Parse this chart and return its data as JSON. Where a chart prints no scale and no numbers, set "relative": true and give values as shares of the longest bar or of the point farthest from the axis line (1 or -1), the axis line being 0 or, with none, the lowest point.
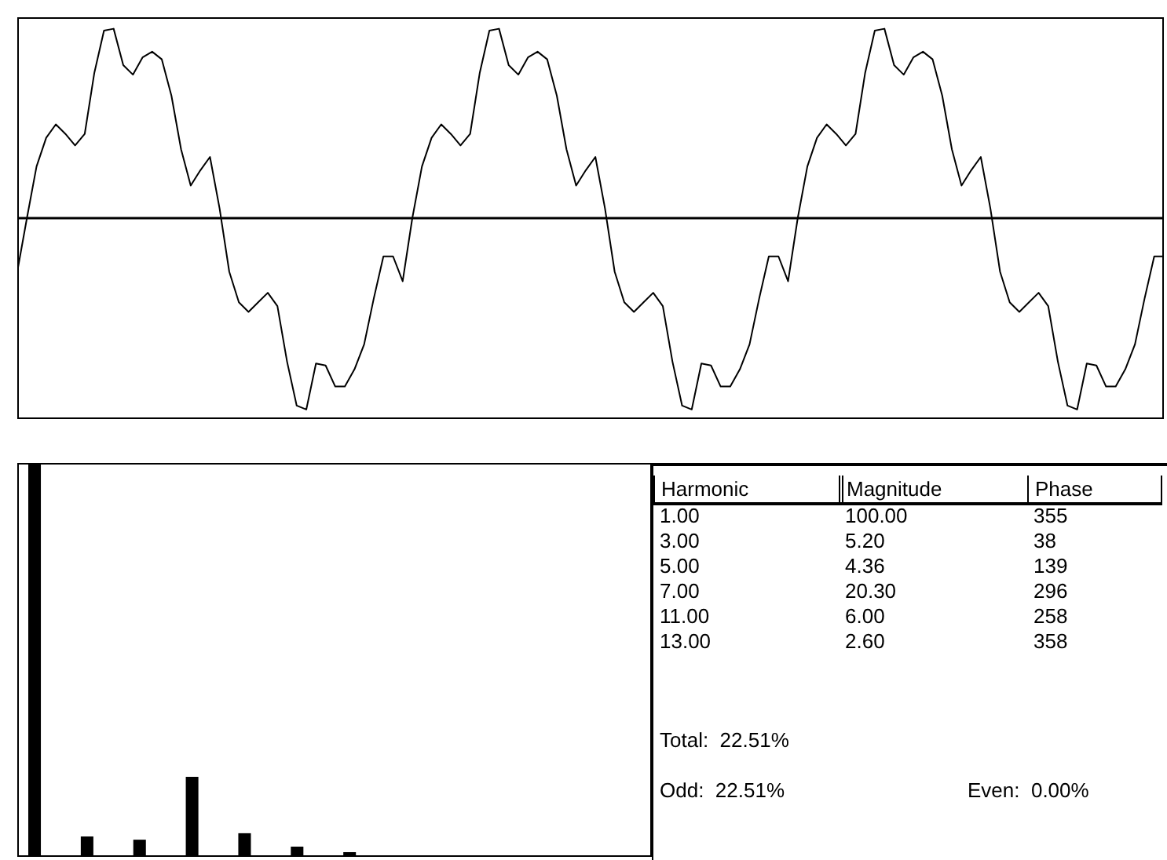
{
  "chart_data": [
    {
      "type": "line",
      "relative": true,
      "color": "#000000",
      "categories": [
        null,
        null,
        null,
        null,
        null,
        null,
        null,
        null,
        null,
        null,
        null,
        null,
        null,
        null,
        null,
        null,
        null,
        null,
        null,
        null,
        null,
        null,
        null,
        null,
        null,
        null,
        null,
        null,
        null,
        null,
        null,
        null,
        null,
        null,
        null,
        null,
        null,
        null,
        null,
        null,
        null,
        null,
        null,
        null,
        null,
        null,
        null,
        null,
        null,
        null,
        null,
        null,
        null,
        null,
        null,
        null,
        null,
        null,
        null,
        null,
        null,
        null,
        null,
        null,
        null,
        null,
        null,
        null,
        null,
        null,
        null,
        null,
        null,
        null,
        null,
        null,
        null,
        null,
        null,
        null,
        null,
        null,
        null,
        null,
        null,
        null,
        null,
        null,
        null,
        null,
        null,
        null,
        null,
        null,
        null,
        null,
        null,
        null,
        null,
        null,
        null,
        null,
        null,
        null,
        null,
        null,
        null,
        null,
        null,
        null,
        null,
        null,
        null,
        null,
        null,
        null,
        null,
        null,
        null,
        null
      ],
      "values": [
        -0.28,
        0,
        0.27,
        0.42,
        0.49,
        0.44,
        0.38,
        0.44,
        0.76,
        0.98,
        0.99,
        0.8,
        0.75,
        0.84,
        0.87,
        0.83,
        0.64,
        0.36,
        0.17,
        0.25,
        0.32,
        0.05,
        -0.28,
        -0.44,
        -0.49,
        -0.44,
        -0.39,
        -0.46,
        -0.75,
        -0.98,
        -1,
        -0.76,
        -0.77,
        -0.88,
        -0.88,
        -0.79,
        -0.66,
        -0.42,
        -0.2,
        -0.2,
        -0.33,
        0,
        0.27,
        0.42,
        0.49,
        0.44,
        0.38,
        0.44,
        0.76,
        0.98,
        0.99,
        0.8,
        0.75,
        0.84,
        0.87,
        0.83,
        0.64,
        0.36,
        0.17,
        0.25,
        0.32,
        0.05,
        -0.28,
        -0.44,
        -0.49,
        -0.44,
        -0.39,
        -0.46,
        -0.75,
        -0.98,
        -1,
        -0.76,
        -0.77,
        -0.88,
        -0.88,
        -0.79,
        -0.66,
        -0.42,
        -0.2,
        -0.2,
        -0.33,
        0,
        0.27,
        0.42,
        0.49,
        0.44,
        0.38,
        0.44,
        0.76,
        0.98,
        0.99,
        0.8,
        0.75,
        0.84,
        0.87,
        0.83,
        0.64,
        0.36,
        0.17,
        0.25,
        0.32,
        0.05,
        -0.28,
        -0.44,
        -0.49,
        -0.44,
        -0.39,
        -0.46,
        -0.75,
        -0.98,
        -1,
        -0.76,
        -0.77,
        -0.88,
        -0.88,
        -0.79,
        -0.66,
        -0.42,
        -0.2,
        -0.2
      ]
    },
    {
      "type": "bar",
      "color": "#000000",
      "categories": [
        null,
        null,
        null,
        null,
        null,
        null,
        null
      ],
      "relative": true,
      "values": [
        1,
        0.052,
        0.0436,
        0.203,
        0.06,
        0.026,
        0.012
      ],
      "annotations": [
        "Harmonic",
        "Magnitude",
        "Phase",
        "1.00",
        "100.00",
        "355",
        "3.00",
        "5.20",
        "38",
        "5.00",
        "4.36",
        "139",
        "7.00",
        "20.30",
        "296",
        "11.00",
        "6.00",
        "258",
        "13.00",
        "2.60",
        "358",
        "Total:  22.51%",
        "Odd:  22.51%",
        "Even:  0.00%"
      ]
    }
  ]
}
